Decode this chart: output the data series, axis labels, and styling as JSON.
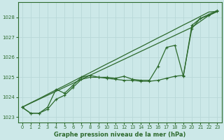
{
  "hours": [
    0,
    1,
    2,
    3,
    4,
    5,
    6,
    7,
    8,
    9,
    10,
    11,
    12,
    13,
    14,
    15,
    16,
    17,
    18,
    19,
    20,
    21,
    22,
    23
  ],
  "line_straight1": [
    1023.5,
    1023.72,
    1023.93,
    1024.15,
    1024.37,
    1024.58,
    1024.8,
    1025.02,
    1025.23,
    1025.45,
    1025.67,
    1025.88,
    1026.1,
    1026.32,
    1026.53,
    1026.75,
    1026.97,
    1027.18,
    1027.4,
    1027.62,
    1027.83,
    1028.05,
    1028.27,
    1028.3
  ],
  "line_straight2": [
    1023.5,
    1023.7,
    1023.9,
    1024.1,
    1024.3,
    1024.5,
    1024.7,
    1024.9,
    1025.1,
    1025.3,
    1025.5,
    1025.7,
    1025.9,
    1026.1,
    1026.3,
    1026.5,
    1026.7,
    1026.9,
    1027.1,
    1027.3,
    1027.5,
    1027.8,
    1028.1,
    1028.3
  ],
  "line_marker1": [
    1023.5,
    1023.2,
    1023.2,
    1023.5,
    1024.4,
    1024.2,
    1024.6,
    1025.0,
    1025.1,
    1025.0,
    1025.0,
    1024.95,
    1025.05,
    1024.9,
    1024.85,
    1024.85,
    1025.55,
    1026.5,
    1026.6,
    1025.05,
    1027.6,
    1027.95,
    1028.15,
    1028.35
  ],
  "line_marker2": [
    1023.5,
    1023.2,
    1023.2,
    1023.4,
    1023.9,
    1024.1,
    1024.5,
    1024.9,
    1025.0,
    1025.0,
    1024.95,
    1024.9,
    1024.85,
    1024.85,
    1024.8,
    1024.8,
    1024.85,
    1024.95,
    1025.05,
    1025.1,
    1027.45,
    1027.95,
    1028.1,
    1028.3
  ],
  "ylim_min": 1022.75,
  "ylim_max": 1028.75,
  "yticks": [
    1023,
    1024,
    1025,
    1026,
    1027,
    1028
  ],
  "line_color": "#2d6a2d",
  "bg_color": "#cce8e8",
  "grid_color": "#b8d8d8",
  "xlabel": "Graphe pression niveau de la mer (hPa)"
}
